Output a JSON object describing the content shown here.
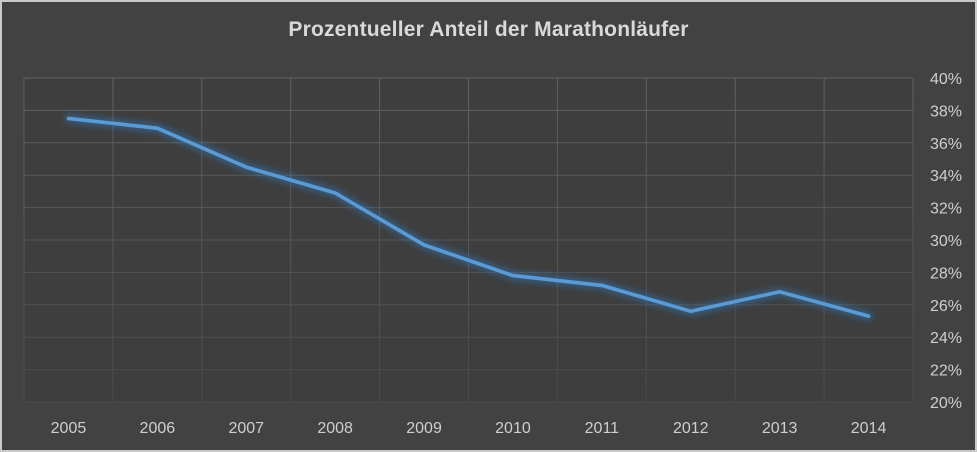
{
  "chart_data": {
    "type": "line",
    "title": "Prozentueller Anteil der Marathonläufer",
    "categories": [
      "2005",
      "2006",
      "2007",
      "2008",
      "2009",
      "2010",
      "2011",
      "2012",
      "2013",
      "2014"
    ],
    "values": [
      37.5,
      36.9,
      34.5,
      32.9,
      29.7,
      27.8,
      27.2,
      25.6,
      26.8,
      25.3
    ],
    "xlabel": "",
    "ylabel": "",
    "ylim": [
      20,
      40
    ],
    "ytick_step": 2,
    "y_tick_labels": [
      "40%",
      "38%",
      "36%",
      "34%",
      "32%",
      "30%",
      "28%",
      "26%",
      "24%",
      "22%",
      "20%"
    ],
    "y_axis_side": "right",
    "grid": "both",
    "legend": "none"
  },
  "colors": {
    "chart_background": "#424242",
    "plot_background": "#3e3e3e",
    "frame_border": "#c9c9c9",
    "gridline_top": "#616161",
    "gridline_bottom": "#4a4a4a",
    "line": "#5b9bd5",
    "line_glow": "#2e75b6",
    "title_text": "#d9d9d9",
    "axis_text": "#cfcfcf"
  }
}
